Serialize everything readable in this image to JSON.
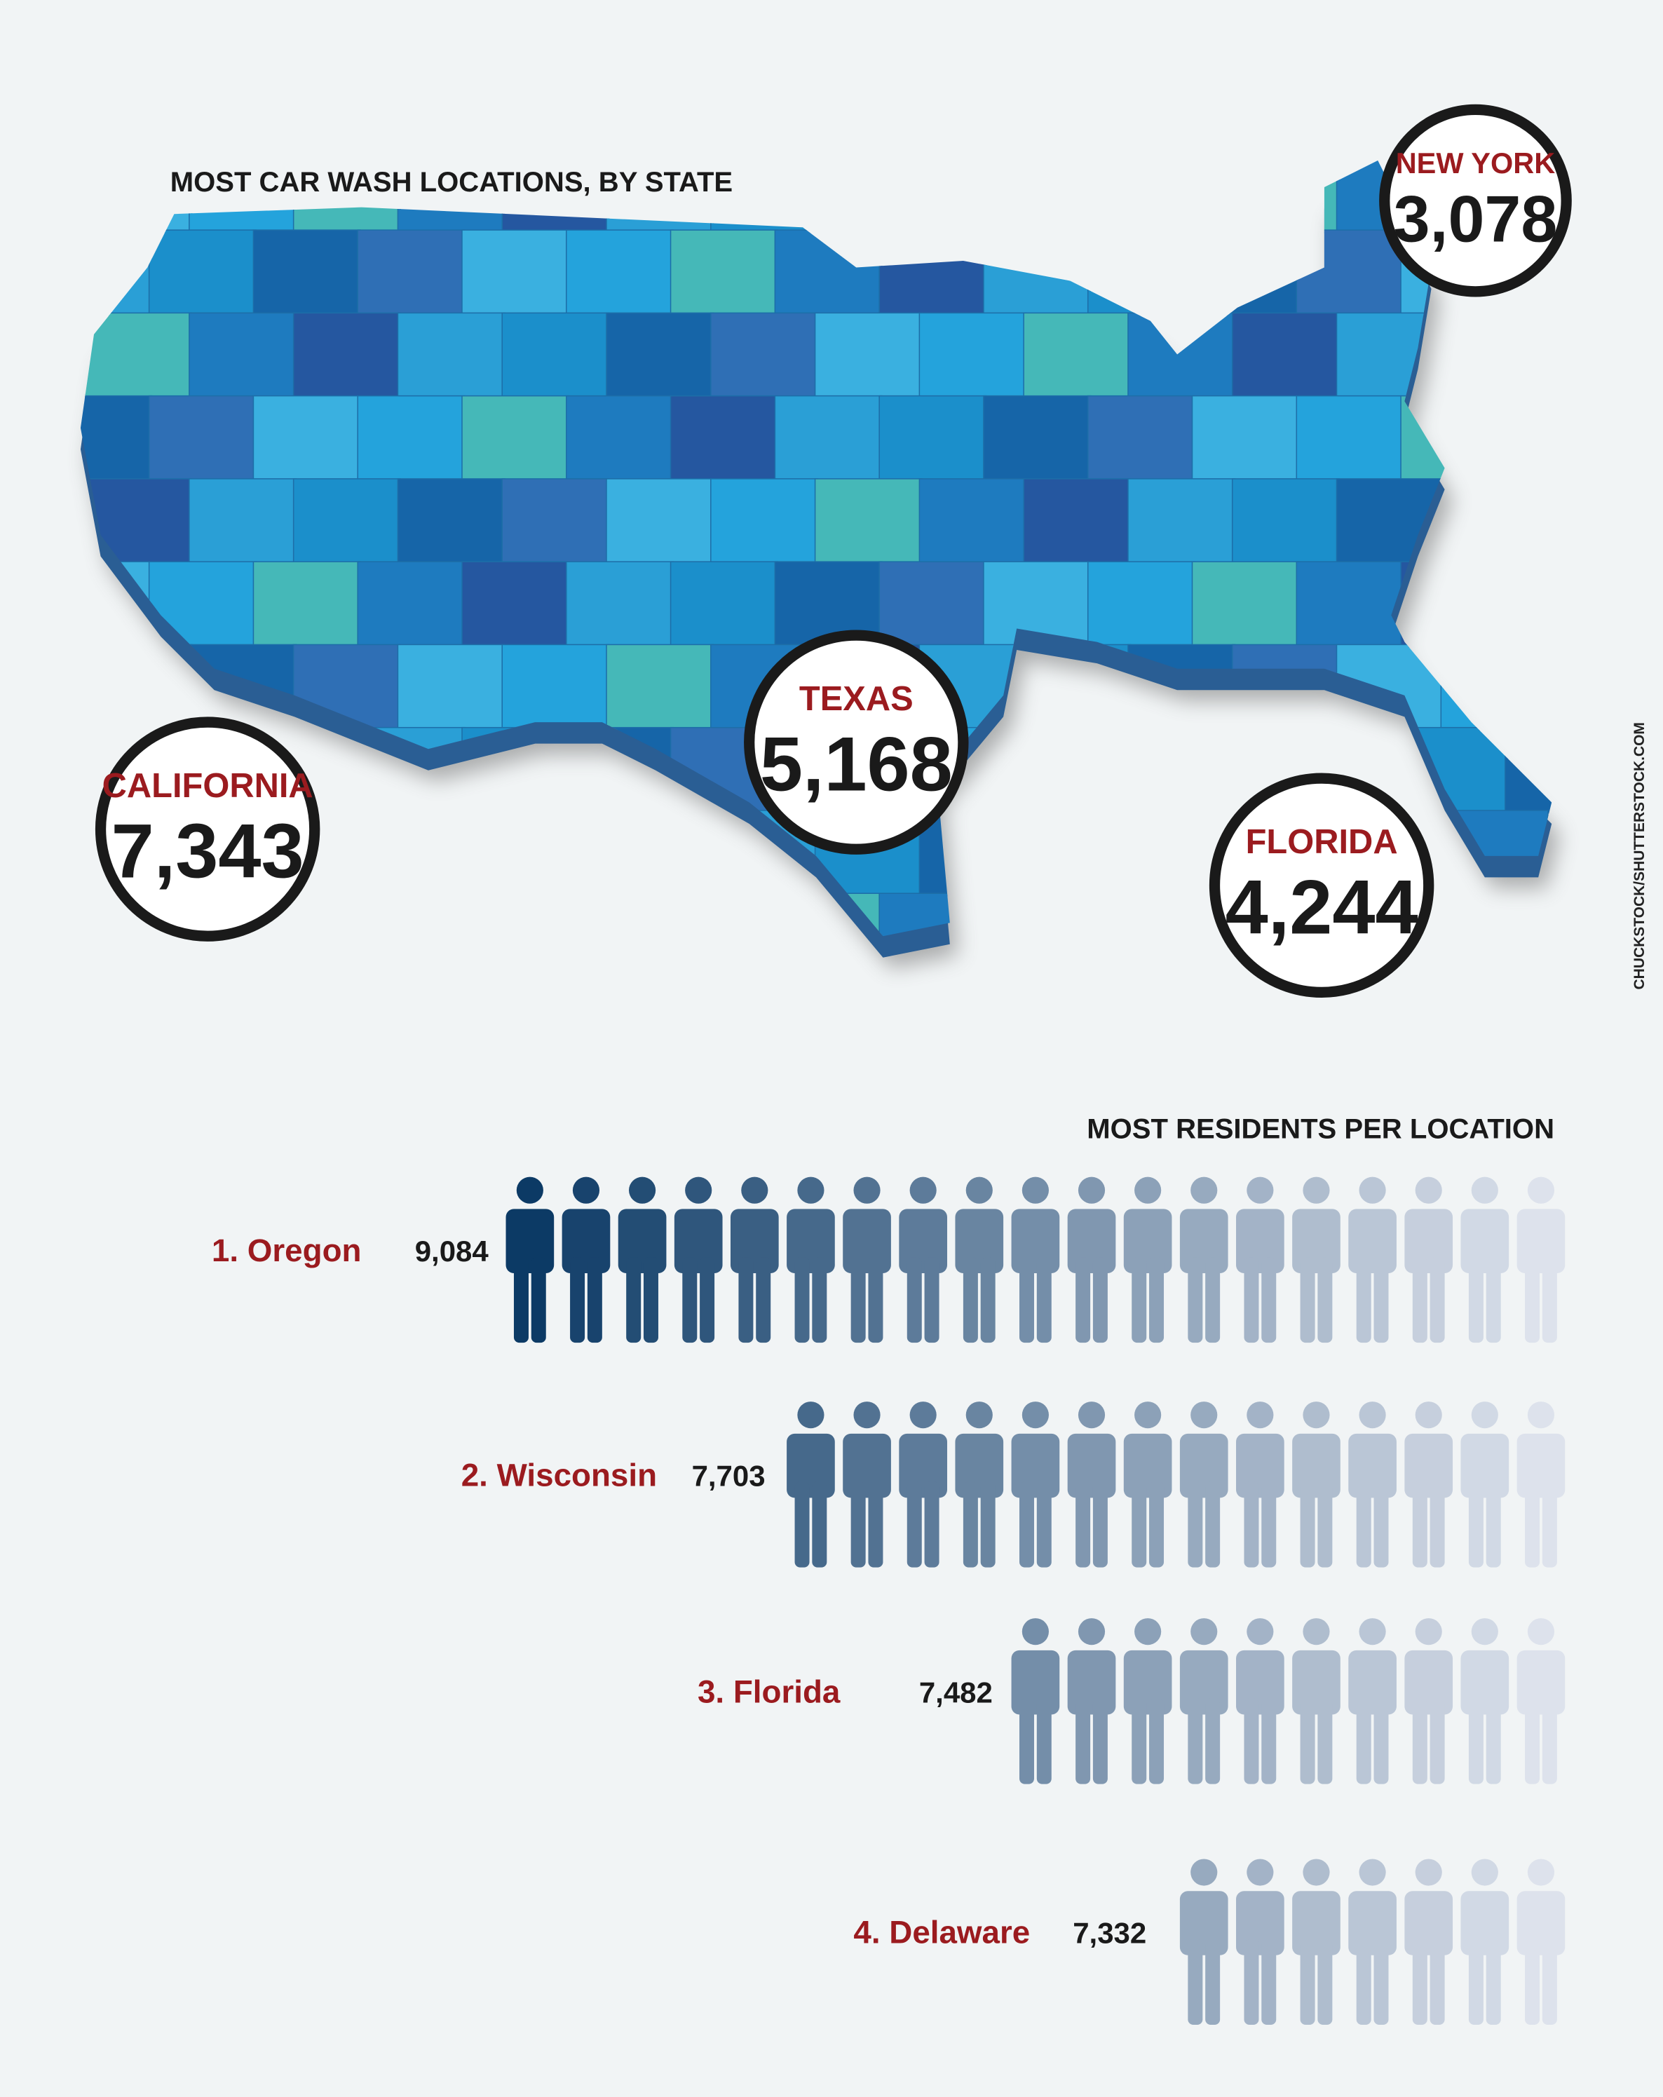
{
  "map": {
    "title": "MOST CAR WASH LOCATIONS, BY STATE",
    "states": [
      {
        "name": "NEW YORK",
        "value": "3,078"
      },
      {
        "name": "TEXAS",
        "value": "5,168"
      },
      {
        "name": "CALIFORNIA",
        "value": "7,343"
      },
      {
        "name": "FLORIDA",
        "value": "4,244"
      }
    ]
  },
  "credit": "CHUCKSTOCK/SHUTTERSTOCK.COM",
  "residents": {
    "title": "MOST RESIDENTS PER LOCATION",
    "rows": [
      {
        "label": "1. Oregon",
        "value": "9,084",
        "icons": 19
      },
      {
        "label": "2. Wisconsin",
        "value": "7,703",
        "icons": 14
      },
      {
        "label": "3. Florida",
        "value": "7,482",
        "icons": 10
      },
      {
        "label": "4. Delaware",
        "value": "7,332",
        "icons": 7
      }
    ]
  }
}
